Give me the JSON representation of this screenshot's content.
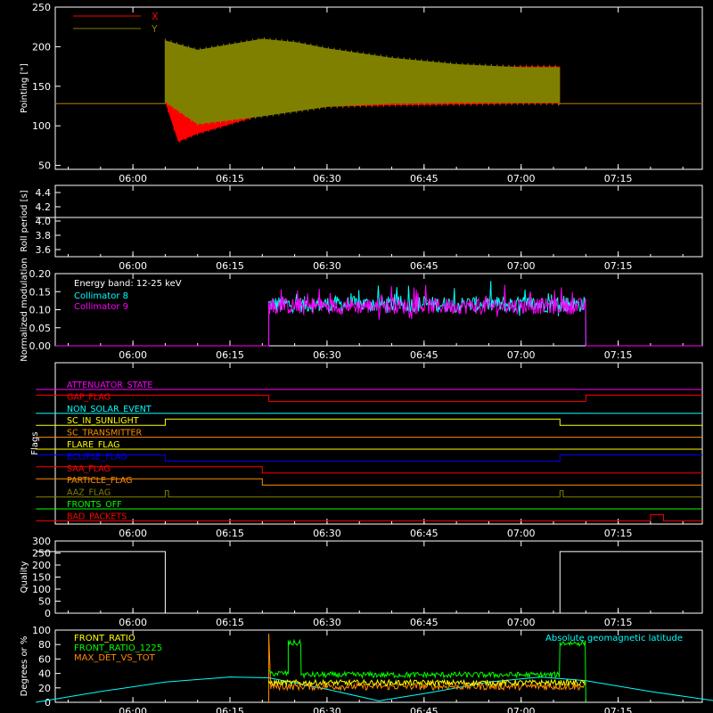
{
  "chart_data": [
    {
      "id": "pointing",
      "type": "line",
      "ylabel": "Pointing [\"]",
      "ylim": [
        45,
        250
      ],
      "yticks": [
        50,
        100,
        150,
        200,
        250
      ],
      "legend": {
        "placement": "top-left",
        "entries": [
          {
            "name": "X",
            "color": "#ff0000"
          },
          {
            "name": "Y",
            "color": "#808000"
          }
        ]
      },
      "series": [
        {
          "name": "X",
          "color": "#ff0000",
          "baseline": 128,
          "active_start": "06:05",
          "active_end": "07:06",
          "min_envelope": {
            "x": [
              "06:05",
              "06:07",
              "06:10",
              "06:15",
              "06:20",
              "06:25",
              "06:30",
              "06:40",
              "06:50",
              "07:00",
              "07:06"
            ],
            "y": [
              128,
              78,
              88,
              100,
              112,
              118,
              122,
              124,
              125,
              126,
              126
            ]
          },
          "max_envelope": {
            "x": [
              "06:05",
              "06:10",
              "06:20",
              "06:30",
              "06:40",
              "06:50",
              "07:00",
              "07:06"
            ],
            "y": [
              210,
              185,
              180,
              177,
              177,
              177,
              177,
              177
            ]
          }
        },
        {
          "name": "Y",
          "color": "#808000",
          "baseline": 128,
          "active_start": "06:05",
          "active_end": "07:06",
          "min_envelope": {
            "x": [
              "06:05",
              "06:10",
              "06:20",
              "06:30",
              "06:40",
              "06:50",
              "07:00",
              "07:06"
            ],
            "y": [
              128,
              100,
              110,
              122,
              126,
              127,
              127,
              127
            ]
          },
          "max_envelope": {
            "x": [
              "06:05",
              "06:10",
              "06:15",
              "06:20",
              "06:25",
              "06:30",
              "06:40",
              "06:50",
              "07:00",
              "07:06"
            ],
            "y": [
              210,
              198,
              205,
              212,
              208,
              200,
              188,
              180,
              176,
              176
            ]
          }
        }
      ]
    },
    {
      "id": "roll",
      "type": "line",
      "ylabel": "Roll period [s]",
      "ylim": [
        3.5,
        4.5
      ],
      "yticks": [
        3.6,
        3.8,
        4.0,
        4.2,
        4.4
      ],
      "series": [
        {
          "color": "#ffffff",
          "x": [
            "05:45",
            "07:30"
          ],
          "y": [
            4.05,
            4.05
          ]
        }
      ]
    },
    {
      "id": "modulation",
      "type": "line",
      "ylabel": "Normalized modulation",
      "ylim": [
        0.0,
        0.2
      ],
      "yticks": [
        0.0,
        0.05,
        0.1,
        0.15,
        0.2
      ],
      "annotation": "Energy band: 12-25 keV",
      "legend": {
        "placement": "top-left",
        "entries": [
          {
            "name": "Collimator 8",
            "color": "#00ffff"
          },
          {
            "name": "Collimator 9",
            "color": "#ff00ff"
          }
        ]
      },
      "series": [
        {
          "name": "Collimator 8",
          "color": "#00ffff",
          "active_start": "06:21",
          "active_end": "07:10",
          "mean": 0.115,
          "min": 0.07,
          "max": 0.18
        },
        {
          "name": "Collimator 9",
          "color": "#ff00ff",
          "active_start": "06:21",
          "active_end": "07:10",
          "mean": 0.11,
          "min": 0.06,
          "max": 0.19
        }
      ]
    },
    {
      "id": "flags",
      "type": "line",
      "ylabel": "Flags",
      "series": [
        {
          "name": "ATTENUATOR_STATE",
          "color": "#ff00ff",
          "steps": [
            [
              "05:45",
              0
            ]
          ]
        },
        {
          "name": "GAP_FLAG",
          "color": "#ff0000",
          "steps": [
            [
              "05:45",
              1
            ],
            [
              "06:21",
              0
            ],
            [
              "07:10",
              1
            ]
          ]
        },
        {
          "name": "NON_SOLAR_EVENT",
          "color": "#00ffff",
          "steps": [
            [
              "05:45",
              0
            ]
          ]
        },
        {
          "name": "SC_IN_SUNLIGHT",
          "color": "#ffff00",
          "steps": [
            [
              "05:45",
              0
            ],
            [
              "06:05",
              1
            ],
            [
              "07:06",
              0
            ]
          ]
        },
        {
          "name": "SC_TRANSMITTER",
          "color": "#ff8c00",
          "steps": [
            [
              "05:45",
              0
            ]
          ]
        },
        {
          "name": "FLARE_FLAG",
          "color": "#ffff00",
          "steps": [
            [
              "05:45",
              0
            ]
          ]
        },
        {
          "name": "ECLIPSE_FLAG",
          "color": "#0000ff",
          "steps": [
            [
              "05:45",
              1
            ],
            [
              "06:05",
              0
            ],
            [
              "07:06",
              1
            ]
          ]
        },
        {
          "name": "SAA_FLAG",
          "color": "#ff0000",
          "steps": [
            [
              "05:45",
              1
            ],
            [
              "06:20",
              0
            ]
          ]
        },
        {
          "name": "PARTICLE_FLAG",
          "color": "#ff8c00",
          "steps": [
            [
              "05:45",
              1
            ],
            [
              "06:20",
              0
            ]
          ]
        },
        {
          "name": "AAZ_FLAG",
          "color": "#808000",
          "steps": [
            [
              "05:45",
              0
            ],
            [
              "06:05",
              1
            ],
            [
              "06:05.5",
              0
            ],
            [
              "07:06",
              1
            ],
            [
              "07:06.5",
              0
            ]
          ]
        },
        {
          "name": "FRONTS_OFF",
          "color": "#00ff00",
          "steps": [
            [
              "05:45",
              0
            ]
          ]
        },
        {
          "name": "BAD_PACKETS",
          "color": "#ff0000",
          "steps": [
            [
              "05:45",
              0
            ],
            [
              "07:20",
              1
            ],
            [
              "07:22",
              0
            ]
          ]
        }
      ]
    },
    {
      "id": "quality",
      "type": "line",
      "ylabel": "Quality",
      "ylim": [
        0,
        300
      ],
      "yticks": [
        0,
        50,
        100,
        150,
        200,
        250,
        300
      ],
      "series": [
        {
          "color": "#ffffff",
          "steps": [
            [
              "05:45",
              256
            ],
            [
              "06:05",
              0
            ],
            [
              "07:06",
              256
            ]
          ]
        }
      ]
    },
    {
      "id": "ratios",
      "type": "line",
      "ylabel": "Degrees or %",
      "ylim": [
        0,
        100
      ],
      "yticks": [
        0,
        20,
        40,
        60,
        80,
        100
      ],
      "annotation": "Absolute geomagnetic latitude",
      "legend": {
        "placement": "top-left",
        "entries": [
          {
            "name": "FRONT_RATIO",
            "color": "#ffff00"
          },
          {
            "name": "FRONT_RATIO_1225",
            "color": "#00ff00"
          },
          {
            "name": "MAX_DET_VS_TOT",
            "color": "#ff8c00"
          }
        ]
      },
      "series": [
        {
          "name": "FRONT_RATIO",
          "color": "#ffff00",
          "active_start": "06:21",
          "active_end": "07:10",
          "level": 27
        },
        {
          "name": "FRONT_RATIO_1225",
          "color": "#00ff00",
          "segments": [
            {
              "start": "06:21",
              "end": "06:24",
              "level": 40
            },
            {
              "start": "06:24",
              "end": "06:26",
              "level": 82
            },
            {
              "start": "06:26",
              "end": "07:06",
              "level": 38
            },
            {
              "start": "07:06",
              "end": "07:10",
              "level": 82
            }
          ]
        },
        {
          "name": "MAX_DET_VS_TOT",
          "color": "#ff8c00",
          "active_start": "06:21",
          "active_end": "07:10",
          "level": 22,
          "spike": 95
        },
        {
          "name": "Absolute geomagnetic latitude",
          "color": "#00ffff",
          "x": [
            "05:45",
            "05:55",
            "06:05",
            "06:15",
            "06:21",
            "06:30",
            "06:38",
            "06:45",
            "06:55",
            "07:03",
            "07:10",
            "07:20",
            "07:30"
          ],
          "y": [
            0,
            15,
            28,
            35,
            34,
            18,
            2,
            12,
            28,
            35,
            30,
            15,
            2
          ]
        }
      ]
    }
  ],
  "x_axis": {
    "range": [
      "05:48",
      "07:28"
    ],
    "ticks": [
      "06:00",
      "06:15",
      "06:30",
      "06:45",
      "07:00",
      "07:15"
    ]
  }
}
